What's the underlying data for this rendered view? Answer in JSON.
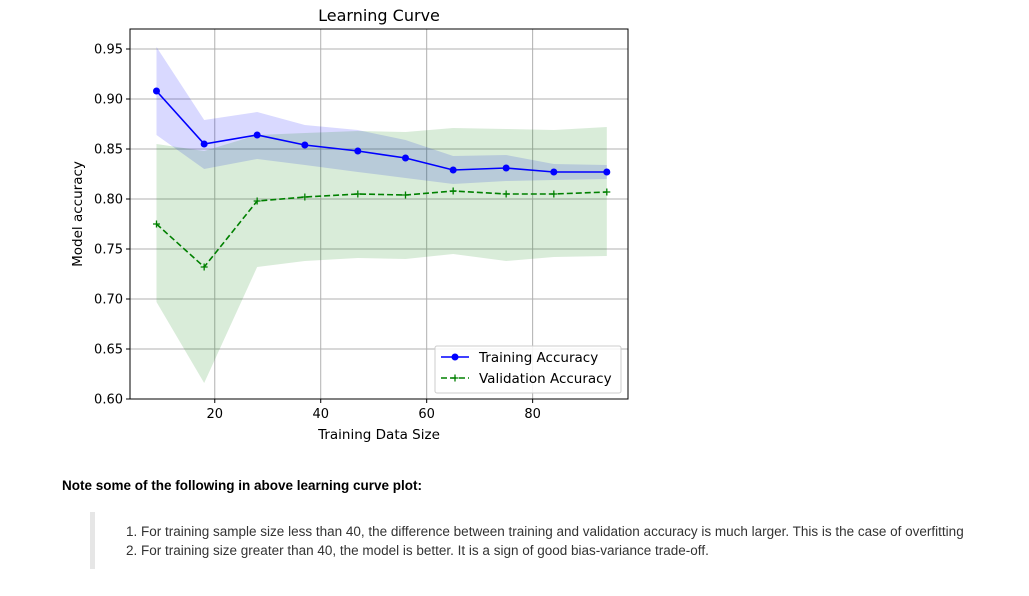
{
  "chart_data": {
    "type": "line",
    "title": "Learning Curve",
    "xlabel": "Training Data Size",
    "ylabel": "Model accuracy",
    "xlim": [
      4,
      98
    ],
    "ylim": [
      0.6,
      0.97
    ],
    "xticks": [
      20,
      40,
      60,
      80
    ],
    "yticks": [
      0.6,
      0.65,
      0.7,
      0.75,
      0.8,
      0.85,
      0.9,
      0.95
    ],
    "grid": true,
    "legend": "bottom-right",
    "x": [
      9,
      18,
      28,
      37,
      47,
      56,
      65,
      75,
      84,
      94
    ],
    "series": [
      {
        "name": "Training Accuracy",
        "color": "#0000ff",
        "band_color": "#0000ff",
        "marker": "circle",
        "linestyle": "solid",
        "values": [
          0.908,
          0.855,
          0.864,
          0.854,
          0.848,
          0.841,
          0.829,
          0.831,
          0.827,
          0.827
        ],
        "lower": [
          0.864,
          0.83,
          0.84,
          0.834,
          0.827,
          0.821,
          0.815,
          0.818,
          0.819,
          0.82
        ],
        "upper": [
          0.952,
          0.879,
          0.887,
          0.874,
          0.869,
          0.859,
          0.843,
          0.844,
          0.835,
          0.834
        ]
      },
      {
        "name": "Validation Accuracy",
        "color": "#008000",
        "band_color": "#008000",
        "marker": "plus",
        "linestyle": "dashed",
        "values": [
          0.775,
          0.732,
          0.798,
          0.802,
          0.805,
          0.804,
          0.808,
          0.805,
          0.805,
          0.807
        ],
        "lower": [
          0.697,
          0.616,
          0.732,
          0.738,
          0.741,
          0.74,
          0.745,
          0.738,
          0.742,
          0.743
        ],
        "upper": [
          0.855,
          0.848,
          0.864,
          0.866,
          0.868,
          0.867,
          0.871,
          0.87,
          0.869,
          0.872
        ]
      }
    ]
  },
  "notes": {
    "heading": "Note some of the following in above learning curve plot:",
    "items": [
      "1. For training sample size less than 40, the difference between training and validation accuracy is much larger. This is the case of overfitting",
      "2. For training size greater than 40, the model is better. It is a sign of good bias-variance trade-off."
    ]
  }
}
